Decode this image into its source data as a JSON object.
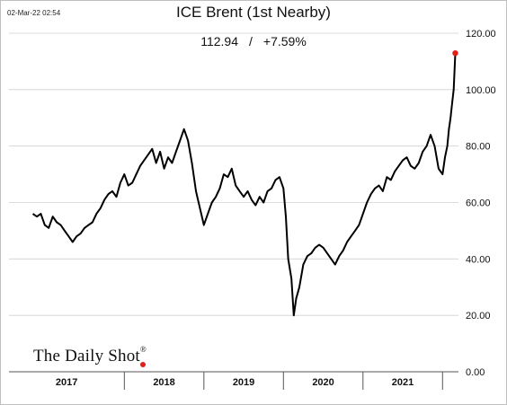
{
  "timestamp": "02-Mar-22 02:54",
  "logo": {
    "text": "The Daily Shot",
    "mark": "®"
  },
  "colors": {
    "line": "#000000",
    "marker": "#e0201b",
    "grid": "#d0d0d0"
  },
  "chart_data": {
    "type": "line",
    "title": "ICE Brent (1st Nearby)",
    "subtitle_value": "112.94",
    "subtitle_sep": "/",
    "subtitle_change": "+7.59%",
    "ylim": [
      0,
      120
    ],
    "yticks": [
      "0.00",
      "20.00",
      "40.00",
      "60.00",
      "80.00",
      "100.00",
      "120.00"
    ],
    "ytick_values": [
      0,
      20,
      40,
      60,
      80,
      100,
      120
    ],
    "grid": true,
    "x_categories": [
      "2017",
      "2018",
      "2019",
      "2020",
      "2021"
    ],
    "x_range": [
      2016.55,
      2022.2
    ],
    "series": [
      {
        "x": [
          2016.85,
          2016.9,
          2016.95,
          2017.0,
          2017.05,
          2017.1,
          2017.15,
          2017.2,
          2017.25,
          2017.3,
          2017.35,
          2017.4,
          2017.45,
          2017.5,
          2017.55,
          2017.6,
          2017.65,
          2017.7,
          2017.75,
          2017.8,
          2017.85,
          2017.9,
          2017.95,
          2018.0,
          2018.05,
          2018.1,
          2018.15,
          2018.2,
          2018.25,
          2018.3,
          2018.35,
          2018.4,
          2018.45,
          2018.5,
          2018.55,
          2018.6,
          2018.65,
          2018.7,
          2018.75,
          2018.8,
          2018.85,
          2018.9,
          2018.95,
          2019.0,
          2019.05,
          2019.1,
          2019.15,
          2019.2,
          2019.25,
          2019.3,
          2019.35,
          2019.4,
          2019.45,
          2019.5,
          2019.55,
          2019.6,
          2019.65,
          2019.7,
          2019.75,
          2019.8,
          2019.85,
          2019.9,
          2019.95,
          2020.0,
          2020.03,
          2020.06,
          2020.1,
          2020.13,
          2020.16,
          2020.2,
          2020.25,
          2020.3,
          2020.35,
          2020.4,
          2020.45,
          2020.5,
          2020.55,
          2020.6,
          2020.65,
          2020.7,
          2020.75,
          2020.8,
          2020.85,
          2020.9,
          2020.95,
          2021.0,
          2021.05,
          2021.1,
          2021.15,
          2021.2,
          2021.25,
          2021.3,
          2021.35,
          2021.4,
          2021.45,
          2021.5,
          2021.55,
          2021.6,
          2021.65,
          2021.7,
          2021.75,
          2021.8,
          2021.85,
          2021.9,
          2021.95,
          2022.0,
          2022.03,
          2022.06,
          2022.08,
          2022.1,
          2022.12,
          2022.14,
          2022.16
        ],
        "y": [
          56,
          55,
          56,
          52,
          51,
          55,
          53,
          52,
          50,
          48,
          46,
          48,
          49,
          51,
          52,
          53,
          56,
          58,
          61,
          63,
          64,
          62,
          67,
          70,
          66,
          67,
          70,
          73,
          75,
          77,
          79,
          74,
          78,
          72,
          76,
          74,
          78,
          82,
          86,
          82,
          74,
          64,
          58,
          52,
          56,
          60,
          62,
          65,
          70,
          69,
          72,
          66,
          64,
          62,
          64,
          61,
          59,
          62,
          60,
          64,
          65,
          68,
          69,
          65,
          55,
          40,
          33,
          20,
          26,
          30,
          38,
          41,
          42,
          44,
          45,
          44,
          42,
          40,
          38,
          41,
          43,
          46,
          48,
          50,
          52,
          56,
          60,
          63,
          65,
          66,
          64,
          69,
          68,
          71,
          73,
          75,
          76,
          73,
          72,
          74,
          78,
          80,
          84,
          80,
          72,
          70,
          76,
          80,
          86,
          90,
          95,
          100,
          112.94
        ]
      }
    ]
  }
}
